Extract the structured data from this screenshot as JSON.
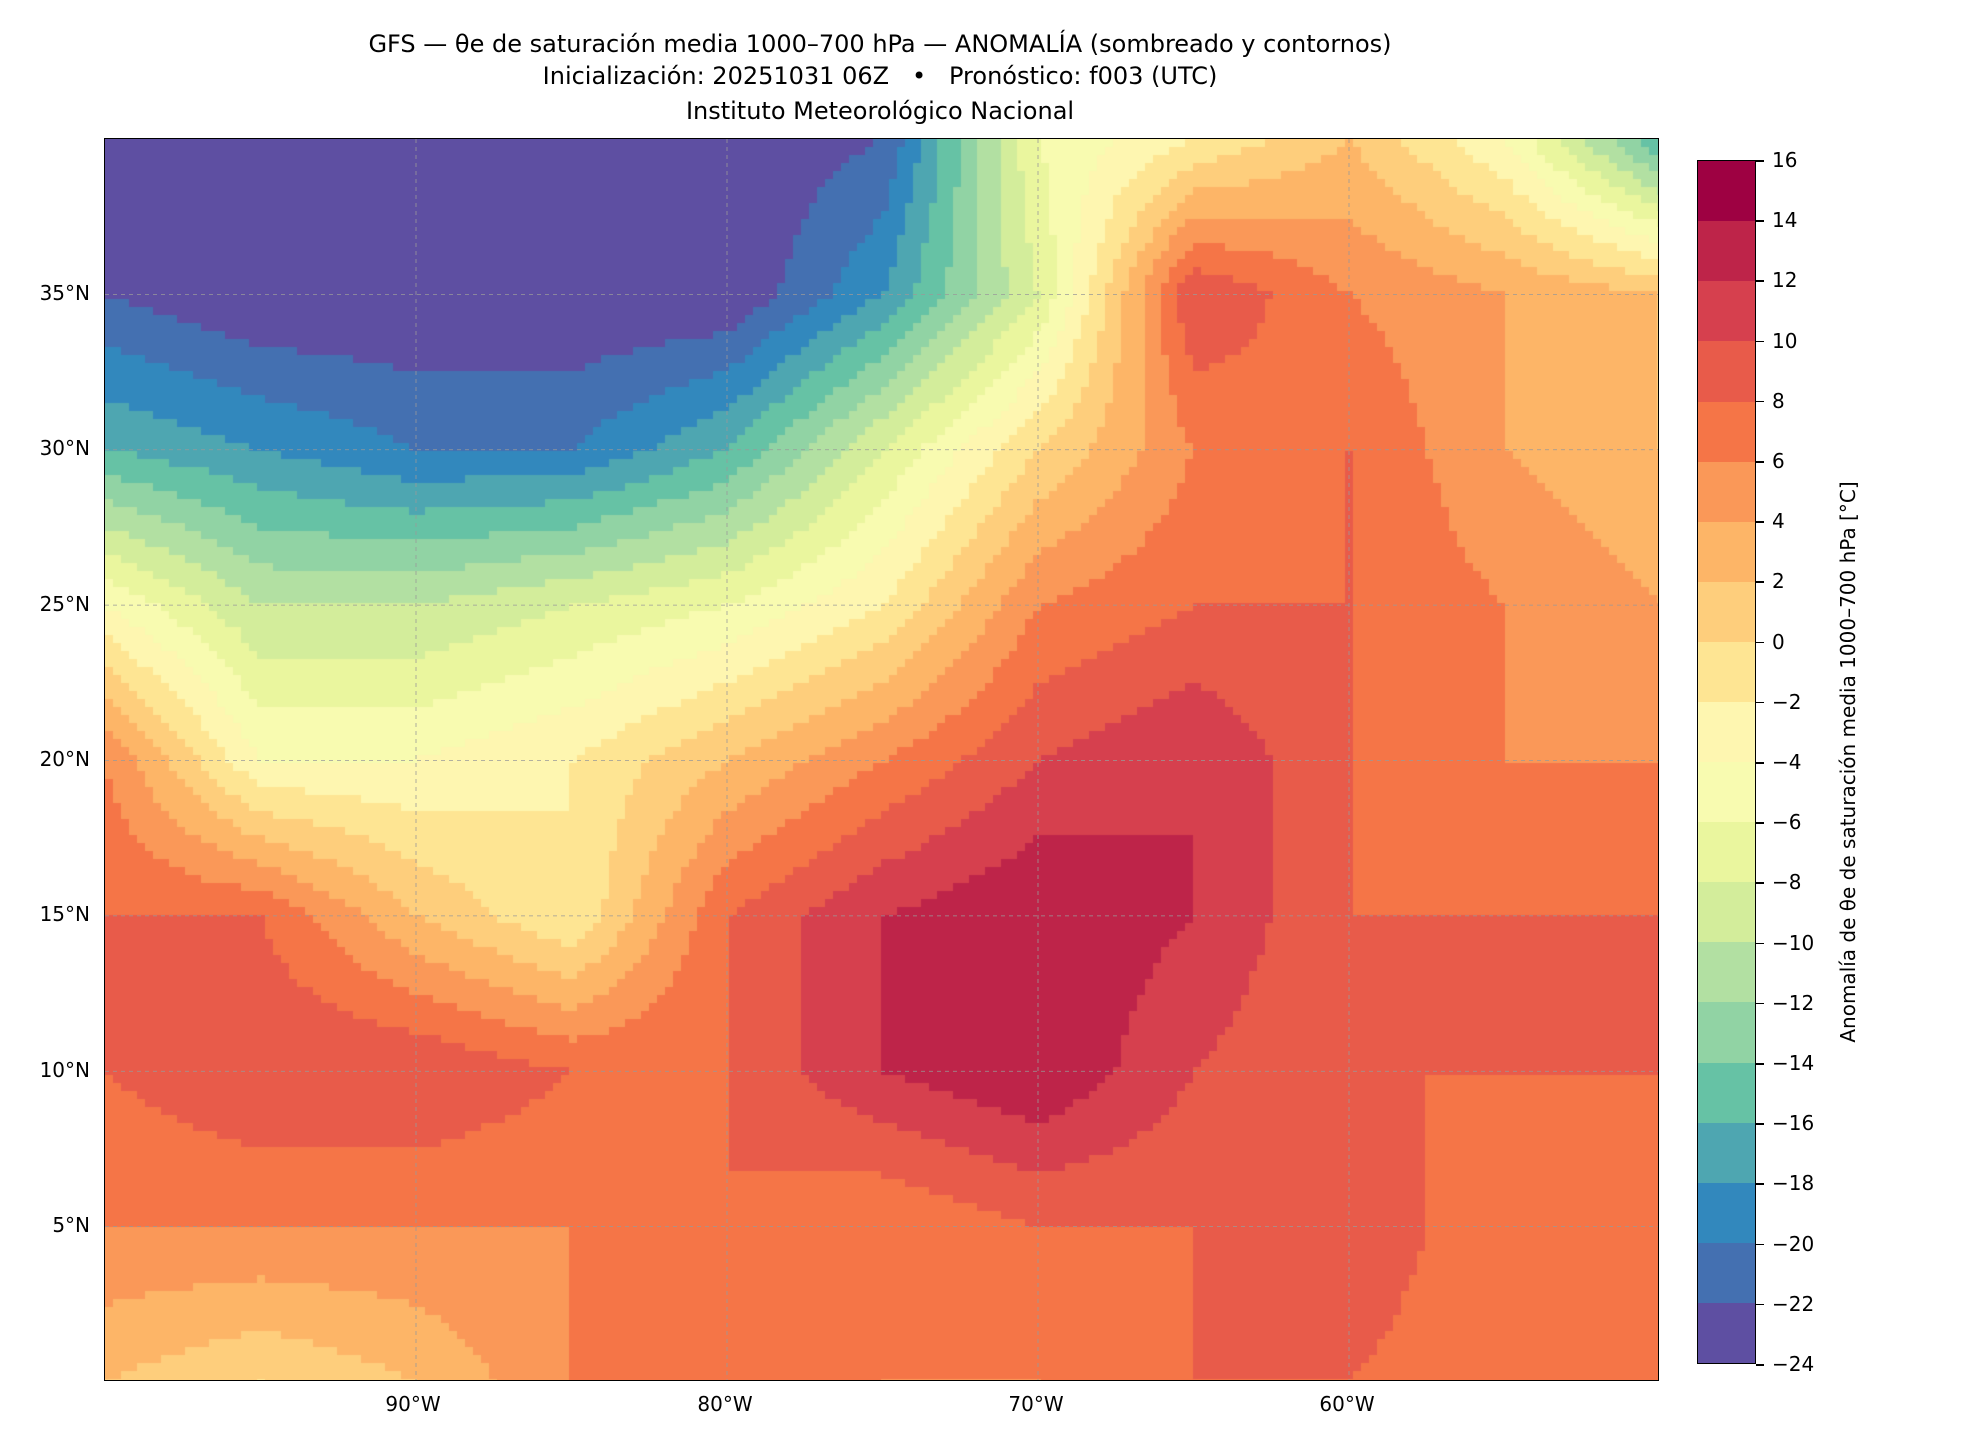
{
  "title": {
    "line1": "GFS — θe de saturación media 1000–700 hPa — ANOMALÍA (sombreado y contornos)",
    "line2": "Inicialización: 20251031 06Z   •   Pronóstico: f003 (UTC)",
    "line3": "Instituto Meteorológico Nacional"
  },
  "axes": {
    "x_ticks": [
      "90°W",
      "80°W",
      "70°W",
      "60°W"
    ],
    "x_tick_lons": [
      -90,
      -80,
      -70,
      -60
    ],
    "y_ticks": [
      "35°N",
      "30°N",
      "25°N",
      "20°N",
      "15°N",
      "10°N",
      "5°N"
    ],
    "y_tick_lats": [
      35,
      30,
      25,
      20,
      15,
      10,
      5
    ],
    "lon_range": [
      -100,
      -50
    ],
    "lat_range": [
      0,
      40
    ]
  },
  "colorbar": {
    "label": "Anomalía de θe de saturación media 1000–700 hPa [°C]",
    "ticks": [
      "16",
      "14",
      "12",
      "10",
      "8",
      "6",
      "4",
      "2",
      "0",
      "−2",
      "−4",
      "−6",
      "−8",
      "−10",
      "−12",
      "−14",
      "−16",
      "−18",
      "−20",
      "−22",
      "−24"
    ],
    "min": -24,
    "max": 16,
    "step": 2,
    "colors": [
      "#5e4fa2",
      "#4470b1",
      "#3288bd",
      "#4ea6b1",
      "#66c2a5",
      "#91d3a4",
      "#b2e0a2",
      "#d3ed9b",
      "#eaf69e",
      "#f8fbb0",
      "#fef6b0",
      "#fee593",
      "#fece7c",
      "#fdb567",
      "#fa9858",
      "#f57547",
      "#e85b4a",
      "#d6404e",
      "#be2449",
      "#9e0142"
    ]
  },
  "chart_data": {
    "type": "heatmap",
    "title": "GFS — θe de saturación media 1000–700 hPa — ANOMALÍA",
    "units": "°C",
    "grid_lons": [
      -100,
      -95,
      -90,
      -85,
      -80,
      -75,
      -70,
      -65,
      -60,
      -55,
      -50
    ],
    "grid_lats": [
      40,
      35,
      30,
      25,
      20,
      15,
      10,
      5,
      0
    ],
    "anomaly": [
      [
        -24,
        -24,
        -24,
        -24,
        -24,
        -22,
        -6,
        -2,
        2,
        -4,
        -16
      ],
      [
        -22,
        -24,
        -24,
        -24,
        -24,
        -18,
        -8,
        10,
        6,
        4,
        2
      ],
      [
        -16,
        -18,
        -20,
        -20,
        -16,
        -8,
        0,
        6,
        8,
        4,
        2
      ],
      [
        -4,
        -10,
        -10,
        -8,
        -6,
        -2,
        6,
        8,
        8,
        6,
        4
      ],
      [
        6,
        -4,
        -4,
        -2,
        2,
        6,
        10,
        12,
        8,
        6,
        6
      ],
      [
        8,
        8,
        2,
        -2,
        8,
        12,
        14,
        12,
        8,
        8,
        8
      ],
      [
        8,
        10,
        10,
        8,
        8,
        12,
        14,
        10,
        8,
        8,
        8
      ],
      [
        6,
        6,
        6,
        6,
        8,
        6,
        8,
        8,
        10,
        6,
        6
      ],
      [
        2,
        0,
        2,
        6,
        8,
        6,
        6,
        8,
        8,
        6,
        6
      ]
    ]
  }
}
